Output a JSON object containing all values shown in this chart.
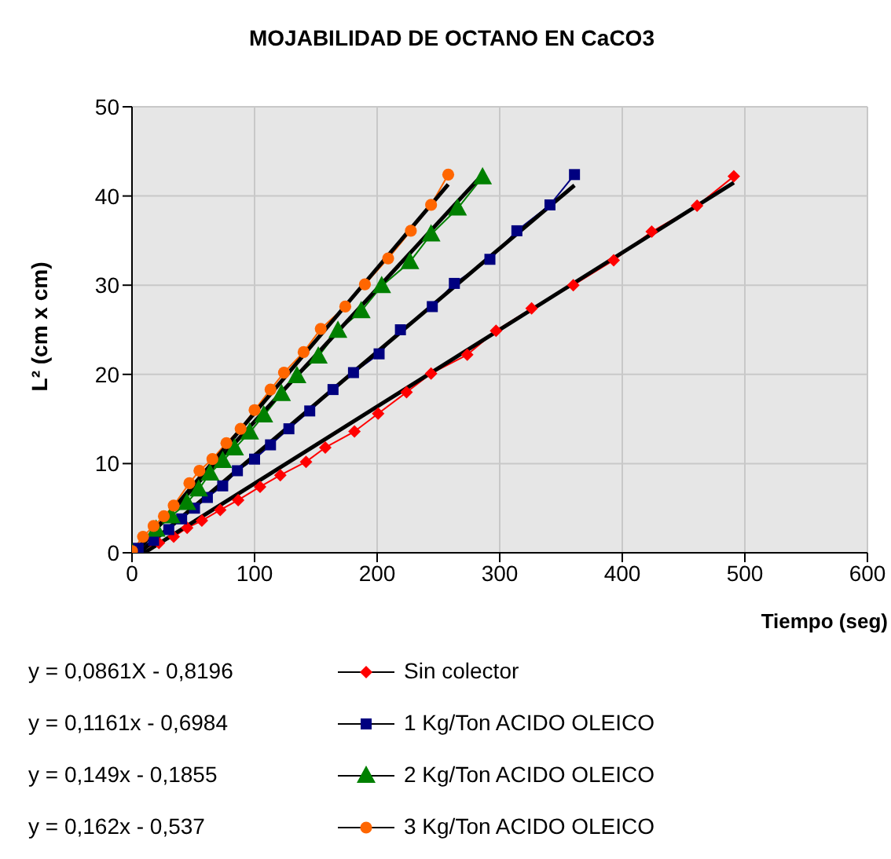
{
  "chart_data": {
    "type": "line",
    "title": "MOJABILIDAD DE OCTANO EN CaCO3",
    "xlabel": "Tiempo (seg)",
    "ylabel": "L² (cm x cm)",
    "xlim": [
      0,
      600
    ],
    "xticks": [
      0,
      100,
      200,
      300,
      400,
      500,
      600
    ],
    "ylim": [
      0,
      50
    ],
    "yticks": [
      0,
      10,
      20,
      30,
      40,
      50
    ],
    "grid": true,
    "legend": "bottom",
    "annotations": [
      "y = 0,0861X - 0,8196",
      "y = 0,1161x - 0,6984",
      "y = 0,149x - 0,1855",
      "y = 0,162x - 0,537"
    ],
    "series": [
      {
        "name": "Sin colector",
        "color": "#ff0000",
        "marker": "diamond",
        "x": [
          3,
          22,
          34,
          45,
          57,
          72,
          86.6,
          104.5,
          121,
          142,
          157.7,
          181.5,
          200.8,
          224,
          244,
          273.5,
          297,
          326,
          360,
          393,
          424,
          461,
          491
        ],
        "values": [
          0.2,
          1.1,
          1.8,
          2.8,
          3.6,
          4.8,
          5.9,
          7.4,
          8.7,
          10.2,
          11.8,
          13.6,
          15.6,
          18,
          20.1,
          22.2,
          24.9,
          27.4,
          30,
          32.8,
          36,
          38.9,
          42.2
        ]
      },
      {
        "name": "1 Kg/Ton ACIDO OLEICO",
        "color": "#000080",
        "marker": "square",
        "x": [
          5,
          17.6,
          30,
          40.5,
          51,
          61.5,
          74,
          86,
          100,
          113,
          128,
          145,
          164,
          180.7,
          201.6,
          219,
          245,
          263,
          292,
          314,
          341,
          361
        ],
        "values": [
          0.5,
          1.4,
          2.6,
          3.8,
          5,
          6.2,
          7.5,
          9.2,
          10.5,
          12.1,
          13.9,
          15.9,
          18.3,
          20.2,
          22.3,
          25,
          27.6,
          30.2,
          32.9,
          36.1,
          39,
          42.4
        ]
      },
      {
        "name": "2 Kg/Ton ACIDO OLEICO",
        "color": "#008000",
        "marker": "triangle",
        "x": [
          0,
          19.7,
          32,
          44.8,
          54.4,
          63.6,
          74,
          83.7,
          96,
          107.5,
          122,
          134.6,
          152,
          168,
          187,
          203.7,
          226.7,
          244,
          265.6,
          286
        ],
        "values": [
          0,
          2.6,
          4.1,
          5.6,
          7.1,
          8.9,
          10.3,
          11.7,
          13.5,
          15.4,
          17.8,
          19.8,
          22,
          24.9,
          27.1,
          29.9,
          32.6,
          35.7,
          38.6,
          42.1
        ]
      },
      {
        "name": "3 Kg/Ton ACIDO OLEICO",
        "color": "#ff6600",
        "marker": "circle",
        "x": [
          0,
          9,
          17.6,
          26,
          34,
          46.8,
          55,
          65.6,
          77,
          88.6,
          100,
          113,
          124,
          140,
          154,
          174,
          190,
          209,
          227.5,
          244,
          258
        ],
        "values": [
          0.2,
          1.8,
          3,
          4.1,
          5.3,
          7.8,
          9.2,
          10.5,
          12.3,
          13.9,
          16,
          18.3,
          20.2,
          22.5,
          25.1,
          27.6,
          30.1,
          33,
          36.1,
          39,
          42.4
        ]
      },
      {
        "type": "line",
        "color": "#000000",
        "marker": "none",
        "x": [
          10,
          491
        ],
        "values": [
          0,
          41.5
        ]
      },
      {
        "type": "line",
        "color": "#000000",
        "marker": "none",
        "x": [
          6,
          361
        ],
        "values": [
          0,
          41.2
        ]
      },
      {
        "type": "line",
        "color": "#000000",
        "marker": "none",
        "x": [
          1.2,
          286
        ],
        "values": [
          0,
          42.4
        ]
      },
      {
        "type": "line",
        "color": "#000000",
        "marker": "none",
        "x": [
          3.3,
          258
        ],
        "values": [
          0,
          41.3
        ]
      }
    ]
  }
}
